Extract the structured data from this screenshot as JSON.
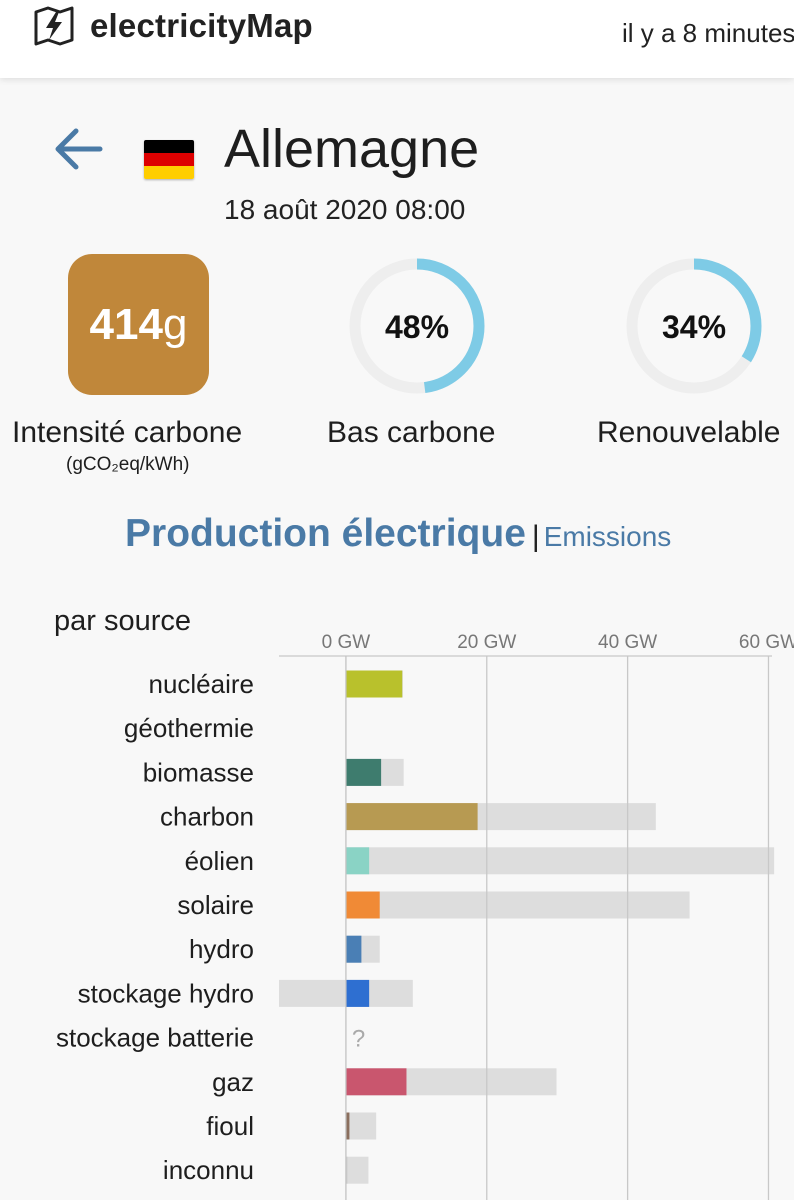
{
  "header": {
    "app_name": "electricityMap",
    "updated": "il y a 8 minutes"
  },
  "zone": {
    "name": "Allemagne",
    "datetime": "18 août 2020 08:00",
    "flag_colors": [
      "#000000",
      "#dd0000",
      "#ffce00"
    ]
  },
  "metrics": {
    "carbon_intensity": {
      "value": "414",
      "unit": "g",
      "label": "Intensité carbone",
      "sublabel": "(gCO₂eq/kWh)",
      "color": "#c0873a"
    },
    "low_carbon": {
      "value": 48,
      "display": "48%",
      "label": "Bas carbone"
    },
    "renewable": {
      "value": 34,
      "display": "34%",
      "label": "Renouvelable"
    },
    "gauge_color": "#7ecbe6",
    "gauge_track_color": "#eeeeee"
  },
  "tabs": {
    "production": "Production électrique",
    "separator": "|",
    "emissions": "Emissions"
  },
  "chart_title": "par source",
  "chart_data": {
    "type": "bar",
    "unit": "GW",
    "x_ticks": [
      "0 GW",
      "20 GW",
      "40 GW",
      "60 GW"
    ],
    "x_tick_values": [
      0,
      20,
      40,
      60
    ],
    "xlim": [
      -9.5,
      60.5
    ],
    "categories": [
      "nucléaire",
      "géothermie",
      "biomasse",
      "charbon",
      "éolien",
      "solaire",
      "hydro",
      "stockage hydro",
      "stockage batterie",
      "gaz",
      "fioul",
      "inconnu"
    ],
    "series": [
      {
        "name": "production",
        "values": [
          8.0,
          0,
          5.0,
          18.7,
          3.3,
          4.8,
          2.2,
          3.3,
          null,
          8.6,
          0.5,
          0.1
        ]
      },
      {
        "name": "capacité",
        "min_values": [
          0,
          0,
          0,
          0,
          0,
          0,
          0,
          -9.5,
          null,
          0,
          0,
          0
        ],
        "values": [
          8.1,
          0,
          8.2,
          44.0,
          60.8,
          48.8,
          4.8,
          9.5,
          null,
          29.9,
          4.3,
          3.2
        ]
      }
    ],
    "colors": [
      "#b9c12c",
      "#d5d5d5",
      "#3e7c6e",
      "#b79a52",
      "#8ad3c5",
      "#f08a36",
      "#4a7fb5",
      "#2e6fd1",
      "#bbbbbb",
      "#c9566e",
      "#8b6f5e",
      "#cccccc"
    ],
    "missing_marker": "?"
  }
}
